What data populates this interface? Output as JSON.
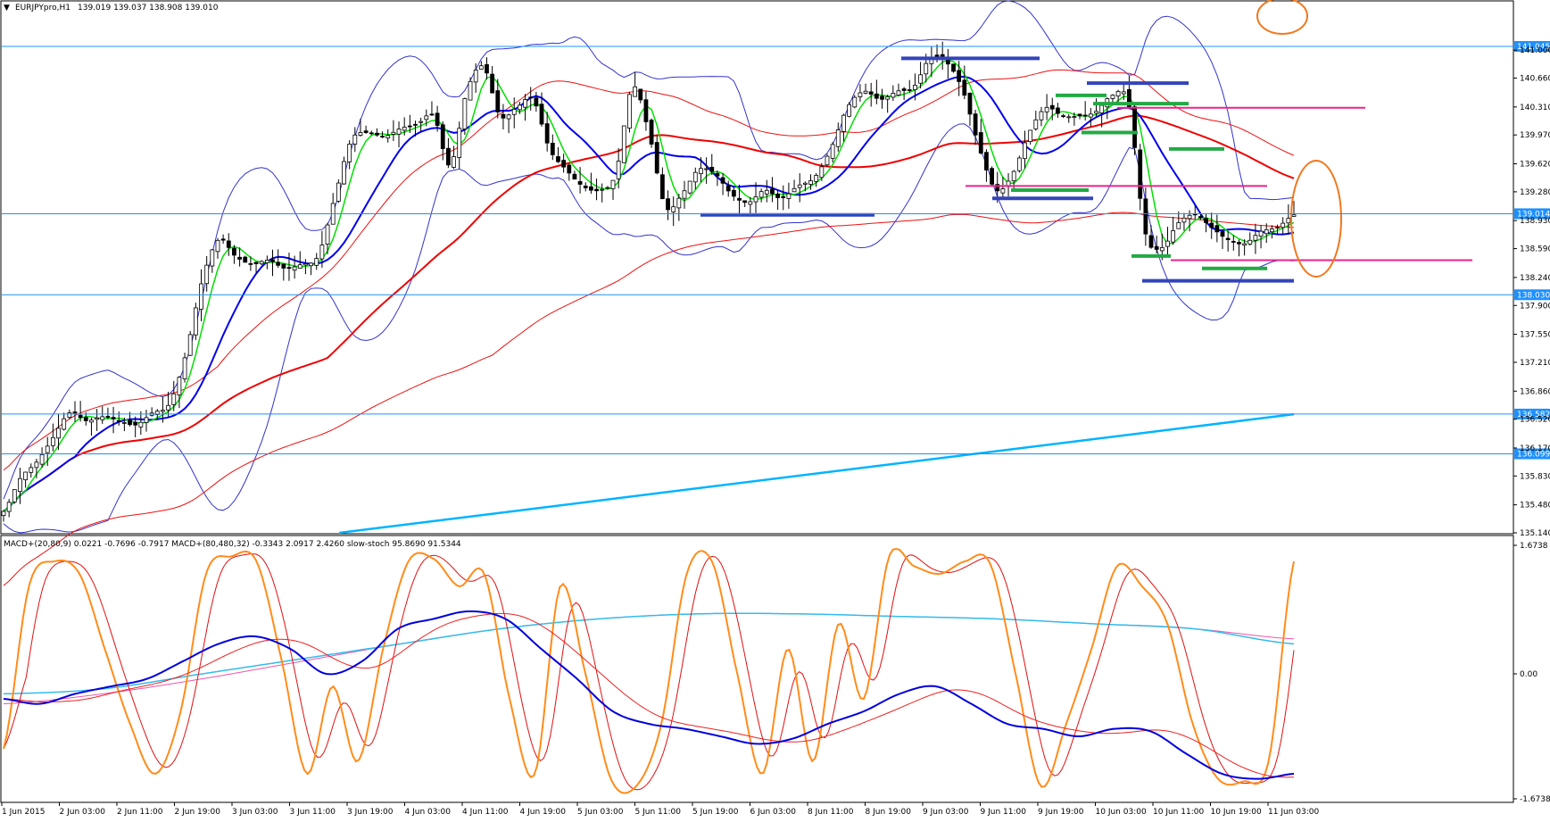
{
  "window": {
    "symbol_label": "EURJPYpro,H1",
    "ohlc_label": "139.019 139.037 138.908 139.010"
  },
  "indicator_label": "MACD+(20,80,9) 0.0221 -0.7696 -0.7917   MACD+(80,480,32) -0.3343 2.0917 2.4260   slow-stoch 95.8690 91.5344",
  "colors": {
    "background": "#ffffff",
    "grid_frame": "#000000",
    "candle_up": "#ffffff",
    "candle_down": "#000000",
    "hline": "#1e90ff",
    "price_tag_bg": "#1e90ff",
    "ma_fast": "#00e000",
    "ma_mid": "#0000ee",
    "ma_slow": "#ee0000",
    "ma_long": "#00b4ff",
    "bollinger": "#3333cc",
    "envelope": "#ee1111",
    "stoch_main": "#ff8c1a",
    "stoch_signal": "#e01010",
    "macd_fast": "#0000dd",
    "macd_fast_signal": "#ee2222",
    "macd_slow": "#33bbee",
    "macd_slow_signal": "#ee55aa",
    "seg_blue": "#3344bb",
    "seg_green": "#22aa44",
    "seg_magenta": "#ee2288",
    "ellipse": "#f0781e"
  },
  "chart_data": [
    {
      "type": "line",
      "panel": "price",
      "symbol": "EURJPYpro,H1",
      "ylim": [
        135.14,
        141.5
      ],
      "y_ticks": [
        "141.000",
        "140.660",
        "140.310",
        "139.970",
        "139.620",
        "139.280",
        "138.930",
        "138.590",
        "138.240",
        "137.900",
        "137.550",
        "137.210",
        "136.860",
        "136.520",
        "136.170",
        "135.830",
        "135.480",
        "135.140"
      ],
      "horizontal_levels": [
        {
          "value": 141.045,
          "label": "141.045"
        },
        {
          "value": 139.014,
          "label": "139.014"
        },
        {
          "value": 138.03,
          "label": "138.030"
        },
        {
          "value": 136.582,
          "label": "136.582"
        },
        {
          "value": 136.099,
          "label": "136.099"
        }
      ],
      "candle_anchors": [
        135.4,
        135.8,
        136.0,
        136.3,
        136.6,
        136.5,
        136.55,
        136.5,
        136.45,
        136.6,
        136.7,
        137.3,
        138.2,
        138.7,
        138.5,
        138.4,
        138.45,
        138.35,
        138.4,
        138.5,
        139.2,
        139.9,
        140.0,
        139.95,
        140.05,
        140.1,
        140.2,
        139.6,
        140.5,
        140.8,
        140.2,
        140.3,
        140.4,
        139.8,
        139.55,
        139.35,
        139.3,
        139.5,
        140.55,
        140.0,
        139.1,
        139.25,
        139.55,
        139.5,
        139.25,
        139.15,
        139.3,
        139.2,
        139.35,
        139.45,
        139.8,
        140.3,
        140.5,
        140.4,
        140.5,
        140.55,
        140.9,
        140.85,
        140.5,
        139.8,
        139.3,
        139.5,
        140.0,
        140.3,
        140.2,
        140.2,
        140.25,
        140.45,
        140.35,
        138.8,
        138.6,
        138.9,
        139.0,
        138.85,
        138.7,
        138.65,
        138.8,
        138.85,
        139.0
      ],
      "x_ticks": [
        "1 Jun 2015",
        "2 Jun 03:00",
        "2 Jun 11:00",
        "2 Jun 19:00",
        "3 Jun 03:00",
        "3 Jun 11:00",
        "3 Jun 19:00",
        "4 Jun 03:00",
        "4 Jun 11:00",
        "4 Jun 19:00",
        "5 Jun 03:00",
        "5 Jun 11:00",
        "5 Jun 19:00",
        "6 Jun 03:00",
        "8 Jun 11:00",
        "8 Jun 19:00",
        "9 Jun 03:00",
        "9 Jun 11:00",
        "9 Jun 19:00",
        "10 Jun 03:00",
        "10 Jun 11:00",
        "10 Jun 19:00",
        "11 Jun 03:00"
      ]
    },
    {
      "type": "line",
      "panel": "oscillator",
      "ylim": [
        -1.6738,
        1.6738
      ],
      "y_ticks": [
        "1.6738",
        "0.00",
        "-1.6738"
      ],
      "stoch_anchors": [
        0.2,
        0.85,
        0.95,
        0.9,
        0.6,
        0.3,
        0.1,
        0.35,
        0.9,
        0.97,
        0.95,
        0.55,
        0.1,
        0.45,
        0.15,
        0.6,
        0.95,
        0.96,
        0.85,
        0.9,
        0.4,
        0.1,
        0.85,
        0.5,
        0.08,
        0.05,
        0.3,
        0.9,
        0.95,
        0.5,
        0.1,
        0.6,
        0.15,
        0.7,
        0.4,
        0.97,
        0.93,
        0.9,
        0.95,
        0.94,
        0.5,
        0.05,
        0.3,
        0.6,
        0.93,
        0.85,
        0.7,
        0.3,
        0.08,
        0.07,
        0.15,
        0.95
      ],
      "macd_fast_anchors": [
        0.4,
        0.38,
        0.42,
        0.45,
        0.48,
        0.55,
        0.62,
        0.65,
        0.6,
        0.5,
        0.55,
        0.68,
        0.72,
        0.75,
        0.72,
        0.6,
        0.48,
        0.35,
        0.3,
        0.28,
        0.25,
        0.22,
        0.24,
        0.3,
        0.35,
        0.42,
        0.45,
        0.38,
        0.3,
        0.28,
        0.25,
        0.28,
        0.27,
        0.18,
        0.1,
        0.08,
        0.1
      ],
      "macd_slow_anchors": [
        0.42,
        0.44,
        0.5,
        0.56,
        0.62,
        0.68,
        0.72,
        0.74,
        0.74,
        0.73,
        0.72,
        0.7,
        0.68,
        0.62
      ],
      "macd_slow_signal_anchors": [
        0.38,
        0.42,
        0.48,
        0.55,
        0.62,
        0.68,
        0.72,
        0.74,
        0.74,
        0.73,
        0.72,
        0.7,
        0.68,
        0.64
      ]
    }
  ]
}
